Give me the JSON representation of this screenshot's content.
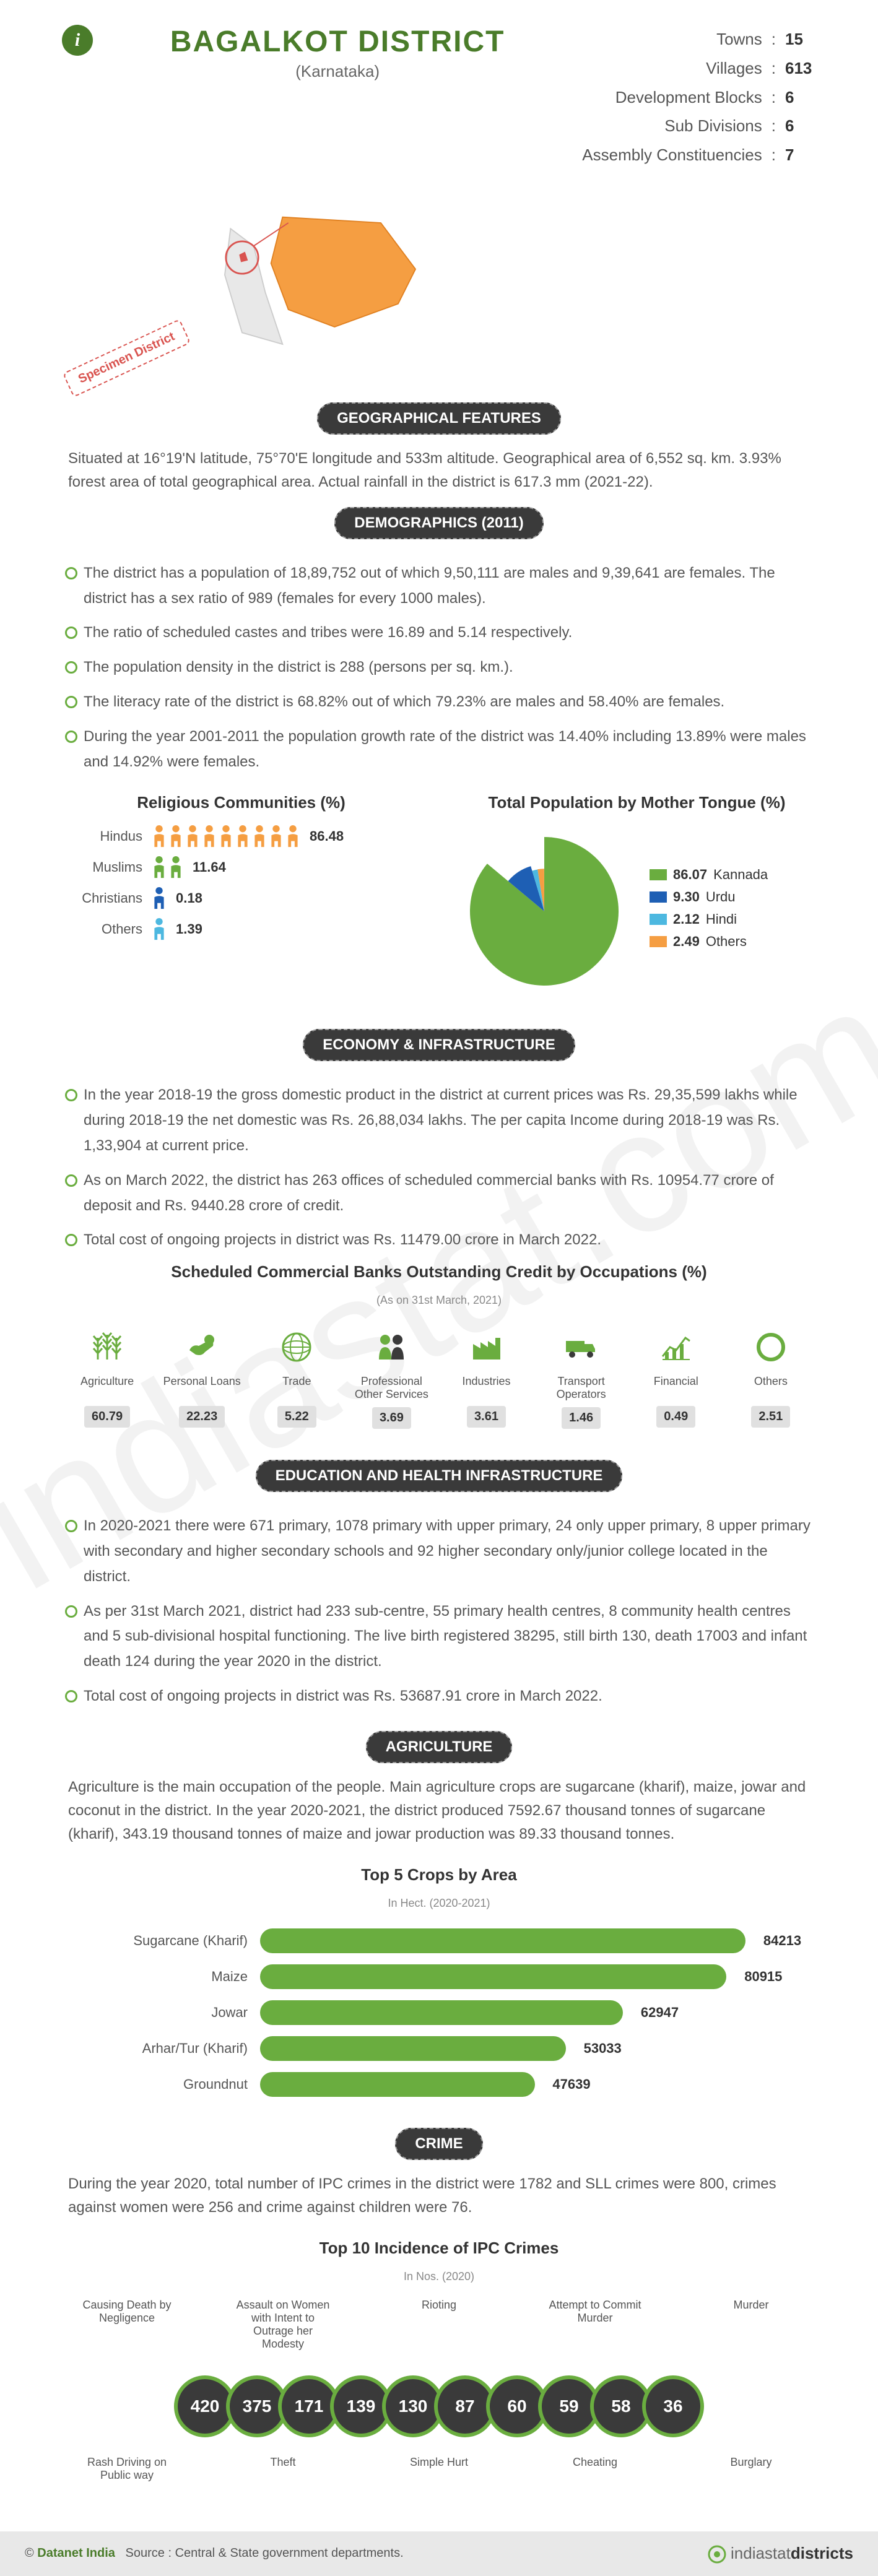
{
  "header": {
    "title": "BAGALKOT DISTRICT",
    "state": "(Karnataka)",
    "specimen": "Specimen District"
  },
  "stats": {
    "items": [
      {
        "label": "Towns",
        "value": "15"
      },
      {
        "label": "Villages",
        "value": "613"
      },
      {
        "label": "Development Blocks",
        "value": "6"
      },
      {
        "label": "Sub Divisions",
        "value": "6"
      },
      {
        "label": "Assembly Constituencies",
        "value": "7"
      }
    ]
  },
  "colors": {
    "primary": "#4a7c2a",
    "green": "#6aad3f",
    "dark": "#3a3a3a",
    "orange": "#f59e42",
    "blue": "#1e5fb4",
    "lightblue": "#4db8e0",
    "grey": "#c4c4c4"
  },
  "geo": {
    "title": "GEOGRAPHICAL FEATURES",
    "text": "Situated at 16°19'N latitude, 75°70'E longitude and 533m altitude. Geographical area of 6,552 sq. km. 3.93% forest area of total geographical area. Actual rainfall in the district is 617.3 mm (2021-22)."
  },
  "demo": {
    "title": "DEMOGRAPHICS (2011)",
    "bullets": [
      "The district has a population of 18,89,752 out of which 9,50,111 are males and 9,39,641 are females. The district has a sex ratio of 989 (females for every 1000 males).",
      "The ratio of scheduled castes and tribes were 16.89 and 5.14 respectively.",
      "The population density in the district is 288 (persons per sq. km.).",
      "The literacy rate of the district is 68.82% out of which 79.23% are males and 58.40% are females.",
      "During the year 2001-2011 the population growth rate of the district was 14.40% including 13.89% were males and 14.92% were females."
    ],
    "religion_title": "Religious Communities (%)",
    "religions": [
      {
        "label": "Hindus",
        "value": "86.48",
        "count": 9,
        "color": "#f59e42"
      },
      {
        "label": "Muslims",
        "value": "11.64",
        "count": 2,
        "color": "#6aad3f"
      },
      {
        "label": "Christians",
        "value": "0.18",
        "count": 1,
        "color": "#1e5fb4"
      },
      {
        "label": "Others",
        "value": "1.39",
        "count": 1,
        "color": "#4db8e0"
      }
    ],
    "tongue_title": "Total Population by Mother Tongue (%)",
    "tongues": [
      {
        "label": "Kannada",
        "value": "86.07",
        "color": "#6aad3f"
      },
      {
        "label": "Urdu",
        "value": "9.30",
        "color": "#1e5fb4"
      },
      {
        "label": "Hindi",
        "value": "2.12",
        "color": "#4db8e0"
      },
      {
        "label": "Others",
        "value": "2.49",
        "color": "#f59e42"
      }
    ]
  },
  "econ": {
    "title": "ECONOMY & INFRASTRUCTURE",
    "bullets": [
      "In the year 2018-19 the gross domestic product in the district at current prices was Rs. 29,35,599 lakhs while during 2018-19 the net domestic was Rs. 26,88,034 lakhs. The per capita Income during 2018-19 was Rs. 1,33,904 at current price.",
      "As on March 2022, the district has 263 offices of scheduled commercial banks with Rs. 10954.77 crore of deposit and Rs. 9440.28 crore of credit.",
      "Total cost of ongoing projects in district was Rs. 11479.00 crore in March 2022."
    ],
    "credit_title": "Scheduled Commercial Banks Outstanding Credit by Occupations (%)",
    "credit_sub": "(As on 31st March, 2021)",
    "credits": [
      {
        "label": "Agriculture",
        "value": "60.79",
        "icon": "wheat"
      },
      {
        "label": "Personal Loans",
        "value": "22.23",
        "icon": "hand"
      },
      {
        "label": "Trade",
        "value": "5.22",
        "icon": "globe"
      },
      {
        "label": "Professional Other Services",
        "value": "3.69",
        "icon": "people"
      },
      {
        "label": "Industries",
        "value": "3.61",
        "icon": "factory"
      },
      {
        "label": "Transport Operators",
        "value": "1.46",
        "icon": "truck"
      },
      {
        "label": "Financial",
        "value": "0.49",
        "icon": "chart"
      },
      {
        "label": "Others",
        "value": "2.51",
        "icon": "circle"
      }
    ]
  },
  "edu": {
    "title": "EDUCATION AND HEALTH INFRASTRUCTURE",
    "bullets": [
      "In 2020-2021 there were 671 primary, 1078 primary with upper primary, 24 only upper primary, 8 upper primary with secondary and higher secondary schools and 92 higher secondary only/junior college located in the district.",
      "As per 31st March 2021, district had 233 sub-centre, 55 primary health centres, 8 community health centres and 5 sub-divisional hospital functioning. The live birth registered 38295, still birth 130, death 17003 and infant death 124 during the year 2020 in the district.",
      "Total cost of ongoing projects in district was Rs. 53687.91 crore in March 2022."
    ]
  },
  "agri": {
    "title": "AGRICULTURE",
    "text": "Agriculture is the main occupation of the people. Main agriculture crops are sugarcane (kharif), maize, jowar and coconut in the district. In the year 2020-2021, the district produced 7592.67 thousand tonnes of sugarcane (kharif), 343.19 thousand tonnes of maize and jowar production was 89.33 thousand tonnes.",
    "chart_title": "Top 5 Crops by Area",
    "chart_sub": "In Hect. (2020-2021)",
    "max": 90000,
    "crops": [
      {
        "label": "Sugarcane (Kharif)",
        "value": 84213
      },
      {
        "label": "Maize",
        "value": 80915
      },
      {
        "label": "Jowar",
        "value": 62947
      },
      {
        "label": "Arhar/Tur (Kharif)",
        "value": 53033
      },
      {
        "label": "Groundnut",
        "value": 47639
      }
    ]
  },
  "crime": {
    "title": "CRIME",
    "text": "During the year 2020, total number of IPC crimes in the district were 1782 and SLL crimes were 800, crimes against women were 256 and crime against children were 76.",
    "chart_title": "Top 10 Incidence of IPC Crimes",
    "chart_sub": "In Nos. (2020)",
    "items": [
      {
        "label": "Rash Driving on Public way",
        "value": "420",
        "pos": "bot"
      },
      {
        "label": "Causing Death by Negligence",
        "value": "375",
        "pos": "top"
      },
      {
        "label": "Theft",
        "value": "171",
        "pos": "bot"
      },
      {
        "label": "Assault on Women with Intent to Outrage her Modesty",
        "value": "139",
        "pos": "top"
      },
      {
        "label": "Simple Hurt",
        "value": "130",
        "pos": "bot"
      },
      {
        "label": "Rioting",
        "value": "87",
        "pos": "top"
      },
      {
        "label": "Cheating",
        "value": "60",
        "pos": "bot"
      },
      {
        "label": "Attempt to Commit Murder",
        "value": "59",
        "pos": "top"
      },
      {
        "label": "Burglary",
        "value": "58",
        "pos": "bot"
      },
      {
        "label": "Murder",
        "value": "36",
        "pos": "top"
      }
    ]
  },
  "footer": {
    "copyright": "© ",
    "datanet": "Datanet India",
    "source": "Source : Central & State government departments.",
    "logo_pre": "indiastat",
    "logo_post": "districts"
  }
}
